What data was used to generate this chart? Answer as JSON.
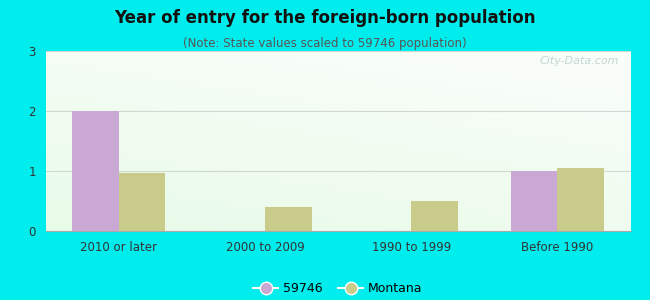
{
  "title": "Year of entry for the foreign-born population",
  "subtitle": "(Note: State values scaled to 59746 population)",
  "categories": [
    "2010 or later",
    "2000 to 2009",
    "1990 to 1999",
    "Before 1990"
  ],
  "series_59746": [
    2.0,
    0.0,
    0.0,
    1.0
  ],
  "series_montana": [
    0.97,
    0.4,
    0.5,
    1.05
  ],
  "color_59746": "#c9a8d4",
  "color_montana": "#c8cb8a",
  "ylim": [
    0,
    3
  ],
  "yticks": [
    0,
    1,
    2,
    3
  ],
  "legend_labels": [
    "59746",
    "Montana"
  ],
  "bg_outer": "#00eded",
  "bg_plot_topleft": "#d8f0d8",
  "bg_plot_topright": "#f0f8f0",
  "bg_plot_bottomleft": "#e8f5e8",
  "bg_plot_bottomright": "#fafffe",
  "bar_width": 0.32,
  "title_fontsize": 12,
  "subtitle_fontsize": 8.5,
  "tick_fontsize": 8.5,
  "watermark_color": "#b8cfc8",
  "watermark_fontsize": 8,
  "grid_color": "#d0d8d0"
}
